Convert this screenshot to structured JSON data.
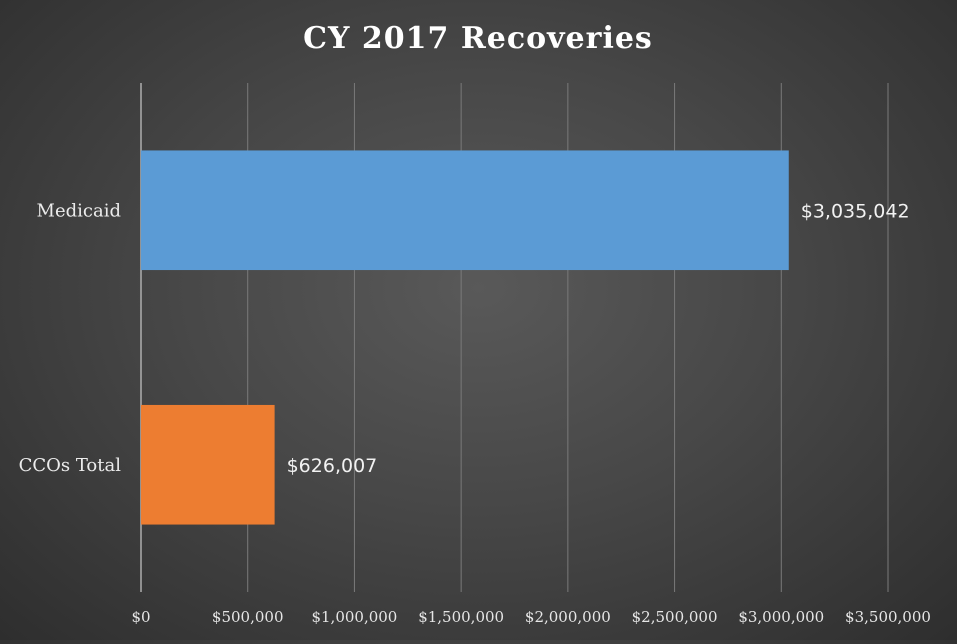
{
  "chart_data": {
    "type": "bar",
    "orientation": "horizontal",
    "title": "CY 2017 Recoveries",
    "categories": [
      "Medicaid",
      "CCOs Total"
    ],
    "values": [
      3035042,
      626007
    ],
    "data_labels": [
      "$3,035,042",
      "$626,007"
    ],
    "bar_colors": [
      "#5b9bd5",
      "#ed7d31"
    ],
    "xlim": [
      0,
      3500000
    ],
    "x_ticks": [
      0,
      500000,
      1000000,
      1500000,
      2000000,
      2500000,
      3000000,
      3500000
    ],
    "x_tick_labels": [
      "$0",
      "$500,000",
      "$1,000,000",
      "$1,500,000",
      "$2,000,000",
      "$2,500,000",
      "$3,000,000",
      "$3,500,000"
    ],
    "xlabel": "",
    "ylabel": "",
    "grid": "vertical",
    "legend": "none"
  }
}
